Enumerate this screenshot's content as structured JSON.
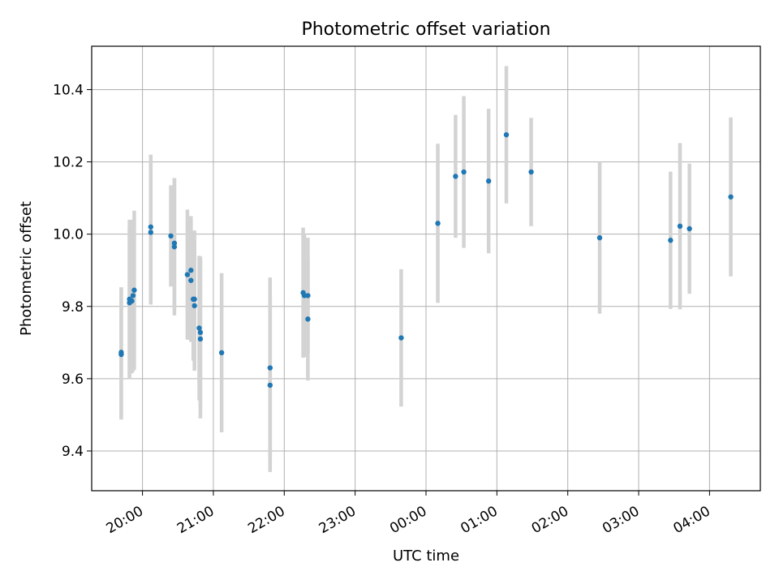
{
  "chart_data": {
    "type": "scatter",
    "title": "Photometric offset variation",
    "xlabel": "UTC time",
    "ylabel": "Photometric offset",
    "x_axis": "time",
    "x_range": [
      "19:17",
      "04:43"
    ],
    "ylim": [
      9.29,
      10.52
    ],
    "x_ticks": [
      "20:00",
      "21:00",
      "22:00",
      "23:00",
      "00:00",
      "01:00",
      "02:00",
      "03:00",
      "04:00"
    ],
    "y_ticks": [
      9.4,
      9.6,
      9.8,
      10.0,
      10.2,
      10.4
    ],
    "grid": true,
    "marker_color": "#1f77b4",
    "errorbar_color": "#d3d3d3",
    "points": [
      {
        "t": "19:42",
        "y": 9.673,
        "err": 0.18
      },
      {
        "t": "19:42",
        "y": 9.667,
        "err": 0.18
      },
      {
        "t": "19:49",
        "y": 9.82,
        "err": 0.22
      },
      {
        "t": "19:49",
        "y": 9.81,
        "err": 0.21
      },
      {
        "t": "19:51",
        "y": 9.815,
        "err": 0.2
      },
      {
        "t": "19:52",
        "y": 9.83,
        "err": 0.21
      },
      {
        "t": "19:53",
        "y": 9.845,
        "err": 0.22
      },
      {
        "t": "20:07",
        "y": 10.02,
        "err": 0.2
      },
      {
        "t": "20:07",
        "y": 10.005,
        "err": 0.2
      },
      {
        "t": "20:24",
        "y": 9.995,
        "err": 0.14
      },
      {
        "t": "20:27",
        "y": 9.975,
        "err": 0.18
      },
      {
        "t": "20:27",
        "y": 9.965,
        "err": 0.19
      },
      {
        "t": "20:38",
        "y": 9.888,
        "err": 0.18
      },
      {
        "t": "20:41",
        "y": 9.9,
        "err": 0.15
      },
      {
        "t": "20:41",
        "y": 9.872,
        "err": 0.17
      },
      {
        "t": "20:43",
        "y": 9.82,
        "err": 0.17
      },
      {
        "t": "20:44",
        "y": 9.82,
        "err": 0.19
      },
      {
        "t": "20:44",
        "y": 9.802,
        "err": 0.18
      },
      {
        "t": "20:48",
        "y": 9.74,
        "err": 0.2
      },
      {
        "t": "20:49",
        "y": 9.728,
        "err": 0.21
      },
      {
        "t": "20:49",
        "y": 9.71,
        "err": 0.22
      },
      {
        "t": "21:07",
        "y": 9.672,
        "err": 0.22
      },
      {
        "t": "21:48",
        "y": 9.63,
        "err": 0.25
      },
      {
        "t": "21:48",
        "y": 9.582,
        "err": 0.24
      },
      {
        "t": "22:16",
        "y": 9.838,
        "err": 0.18
      },
      {
        "t": "22:17",
        "y": 9.83,
        "err": 0.17
      },
      {
        "t": "22:20",
        "y": 9.83,
        "err": 0.16
      },
      {
        "t": "22:20",
        "y": 9.765,
        "err": 0.17
      },
      {
        "t": "23:39",
        "y": 9.713,
        "err": 0.19
      },
      {
        "t": "00:10",
        "y": 10.03,
        "err": 0.22
      },
      {
        "t": "00:25",
        "y": 10.16,
        "err": 0.17
      },
      {
        "t": "00:32",
        "y": 10.172,
        "err": 0.21
      },
      {
        "t": "00:53",
        "y": 10.147,
        "err": 0.2
      },
      {
        "t": "01:08",
        "y": 10.275,
        "err": 0.19
      },
      {
        "t": "01:29",
        "y": 10.172,
        "err": 0.15
      },
      {
        "t": "02:27",
        "y": 9.99,
        "err": 0.21
      },
      {
        "t": "03:27",
        "y": 9.983,
        "err": 0.19
      },
      {
        "t": "03:35",
        "y": 10.022,
        "err": 0.23
      },
      {
        "t": "03:43",
        "y": 10.015,
        "err": 0.18
      },
      {
        "t": "04:18",
        "y": 10.103,
        "err": 0.22
      }
    ]
  }
}
